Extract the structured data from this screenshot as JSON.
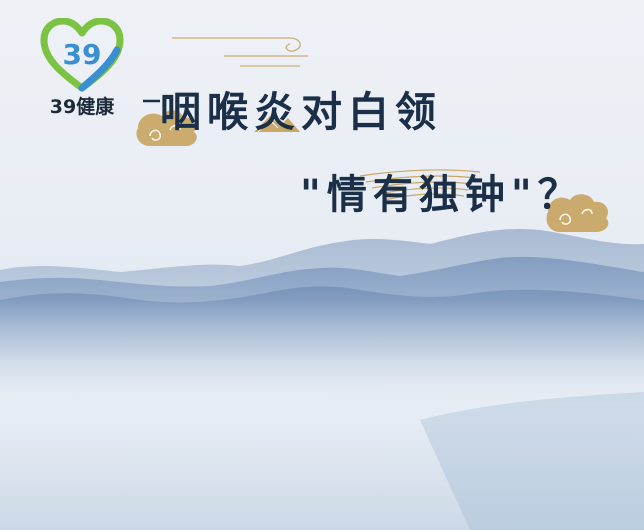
{
  "logo": {
    "heart_number": "39",
    "brand_text": "39健康"
  },
  "title": {
    "line1": "咽喉炎对白领",
    "line2": "\"情有独钟\"？"
  },
  "colors": {
    "title": "#1b2f48",
    "gold_accent": "#c9a766",
    "logo_green": "#7cc243",
    "logo_blue": "#3a8fd1",
    "mountain_far": "#8fa6c4",
    "mountain_near": "#6f8db5"
  },
  "icons": [
    "heart-logo-icon",
    "cloud-swirl-icon",
    "mountain-icon"
  ]
}
